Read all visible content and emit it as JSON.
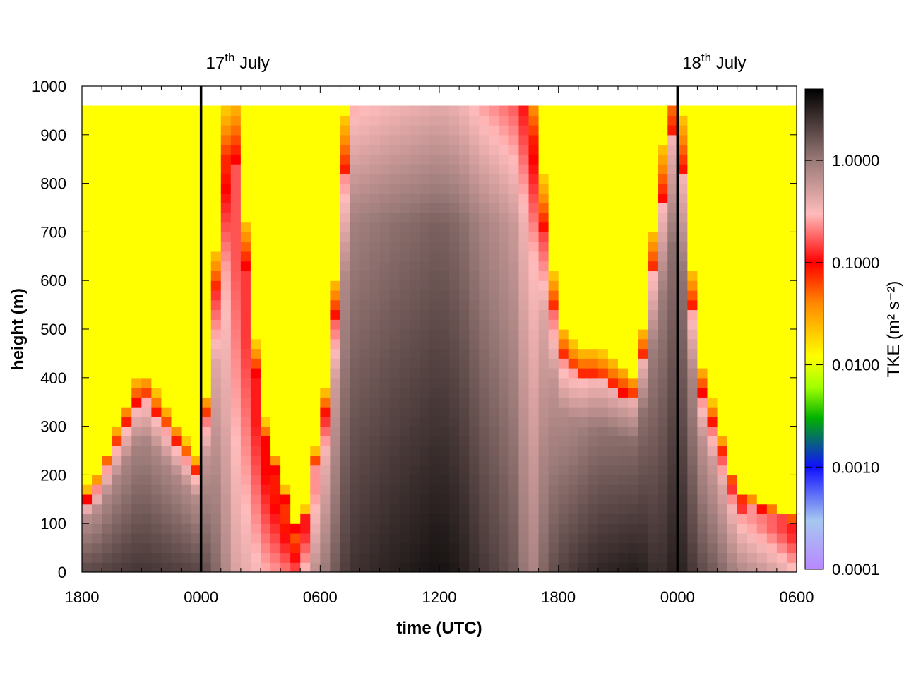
{
  "chart_data": {
    "type": "heatmap",
    "xlabel": "time (UTC)",
    "ylabel": "height (m)",
    "colorbar_label": "TKE (m² s⁻²)",
    "colorbar_scale": "log",
    "colorbar_range": [
      0.0001,
      5.0
    ],
    "colorbar_ticks": [
      "0.0001",
      "0.0010",
      "0.0100",
      "0.1000",
      "1.0000"
    ],
    "colorbar_tick_values": [
      0.0001,
      0.001,
      0.01,
      0.1,
      1.0
    ],
    "colorbar_stops": [
      {
        "value": 0.0001,
        "color": "#b888ff"
      },
      {
        "value": 0.0003,
        "color": "#a6c8f0"
      },
      {
        "value": 0.001,
        "color": "#1010ff"
      },
      {
        "value": 0.003,
        "color": "#00b000"
      },
      {
        "value": 0.006,
        "color": "#a0ff00"
      },
      {
        "value": 0.012,
        "color": "#ffff00"
      },
      {
        "value": 0.04,
        "color": "#ff8800"
      },
      {
        "value": 0.1,
        "color": "#ff0000"
      },
      {
        "value": 0.3,
        "color": "#ffbbbb"
      },
      {
        "value": 1.0,
        "color": "#9a7a78"
      },
      {
        "value": 5.0,
        "color": "#000000"
      }
    ],
    "x_range_hours": [
      0,
      36
    ],
    "x_ticks": [
      "1800",
      "0000",
      "0600",
      "1200",
      "1800",
      "0000",
      "0600"
    ],
    "x_tick_hours": [
      0,
      6,
      12,
      18,
      24,
      30,
      36
    ],
    "ylim": [
      0,
      1000
    ],
    "y_ticks": [
      "0",
      "100",
      "200",
      "300",
      "400",
      "500",
      "600",
      "700",
      "800",
      "900",
      "1000"
    ],
    "y_tick_values": [
      0,
      100,
      200,
      300,
      400,
      500,
      600,
      700,
      800,
      900,
      1000
    ],
    "data_top_height": 960,
    "date_markers": [
      {
        "label_main": "17",
        "label_sup": "th",
        "label_rest": " July",
        "hour": 6
      },
      {
        "label_main": "18",
        "label_sup": "th",
        "label_rest": " July",
        "hour": 30
      }
    ],
    "bl_profile": {
      "hours": [
        0.5,
        3,
        6,
        7.5,
        9,
        11,
        12.5,
        13.5,
        15,
        16.5,
        18,
        19,
        20,
        21,
        22,
        22.5,
        24,
        25,
        26,
        28,
        29,
        30,
        31,
        33,
        36
      ],
      "heights": [
        150,
        370,
        190,
        960,
        300,
        60,
        380,
        960,
        960,
        960,
        960,
        960,
        960,
        960,
        960,
        960,
        450,
        400,
        400,
        350,
        700,
        960,
        400,
        150,
        100
      ],
      "core_tke": [
        2.0,
        2.5,
        2.0,
        0.5,
        0.3,
        0.15,
        1.2,
        2.5,
        3.0,
        3.5,
        4.0,
        3.5,
        2.5,
        2.0,
        1.5,
        0.6,
        2.0,
        2.5,
        3.0,
        3.5,
        2.5,
        3.5,
        2.0,
        0.8,
        0.3
      ]
    }
  }
}
